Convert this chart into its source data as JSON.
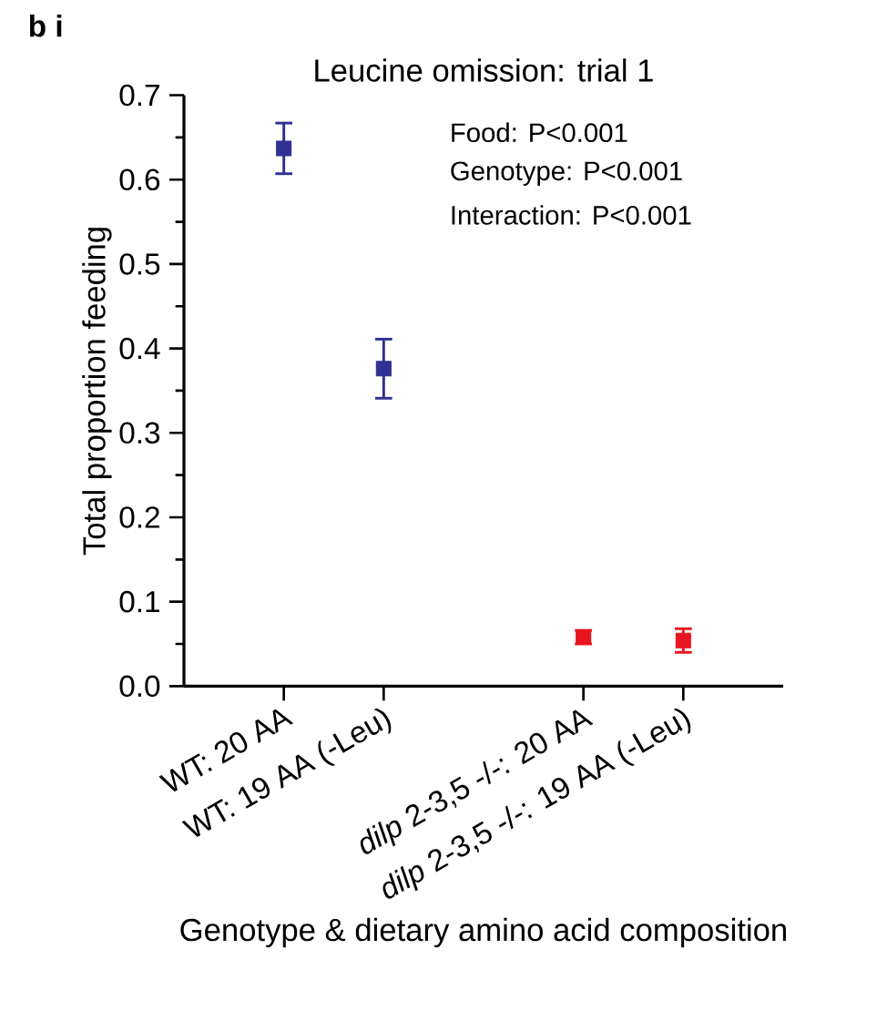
{
  "chart_data": {
    "type": "scatter",
    "title": "Leucine omission: trial 1",
    "xlabel": "Genotype & dietary amino acid composition",
    "ylabel": "Total proportion feeding",
    "categories": [
      "WT: 20 AA",
      "WT: 19 AA (-Leu)",
      null,
      "*dilp* 2-3,5 -/-: 20 AA",
      "*dilp* 2-3,5 -/-: 19 AA (-Leu)"
    ],
    "values": [
      0.637,
      0.376,
      null,
      0.058,
      0.054
    ],
    "errors": [
      0.03,
      0.035,
      null,
      0.008,
      0.014
    ],
    "colors": [
      "#2e3192",
      "#2e3192",
      null,
      "#e8141f",
      "#e8141f"
    ],
    "marker": "square",
    "ylim": [
      0,
      0.7
    ],
    "yticks": [
      {
        "value": 0,
        "label": "0.0"
      },
      {
        "value": 0.05,
        "label": null
      },
      0.1,
      {
        "value": 0.15,
        "label": null
      },
      0.2,
      {
        "value": 0.25,
        "label": null
      },
      0.3,
      {
        "value": 0.35,
        "label": null
      },
      0.4,
      {
        "value": 0.45,
        "label": null
      },
      0.5,
      {
        "value": 0.55,
        "label": null
      },
      0.6,
      {
        "value": 0.65,
        "label": null
      },
      0.7
    ],
    "annotations": [
      "b i",
      "Food: P<0.001",
      "Genotype: P<0.001",
      "Interaction: P<0.001"
    ]
  }
}
